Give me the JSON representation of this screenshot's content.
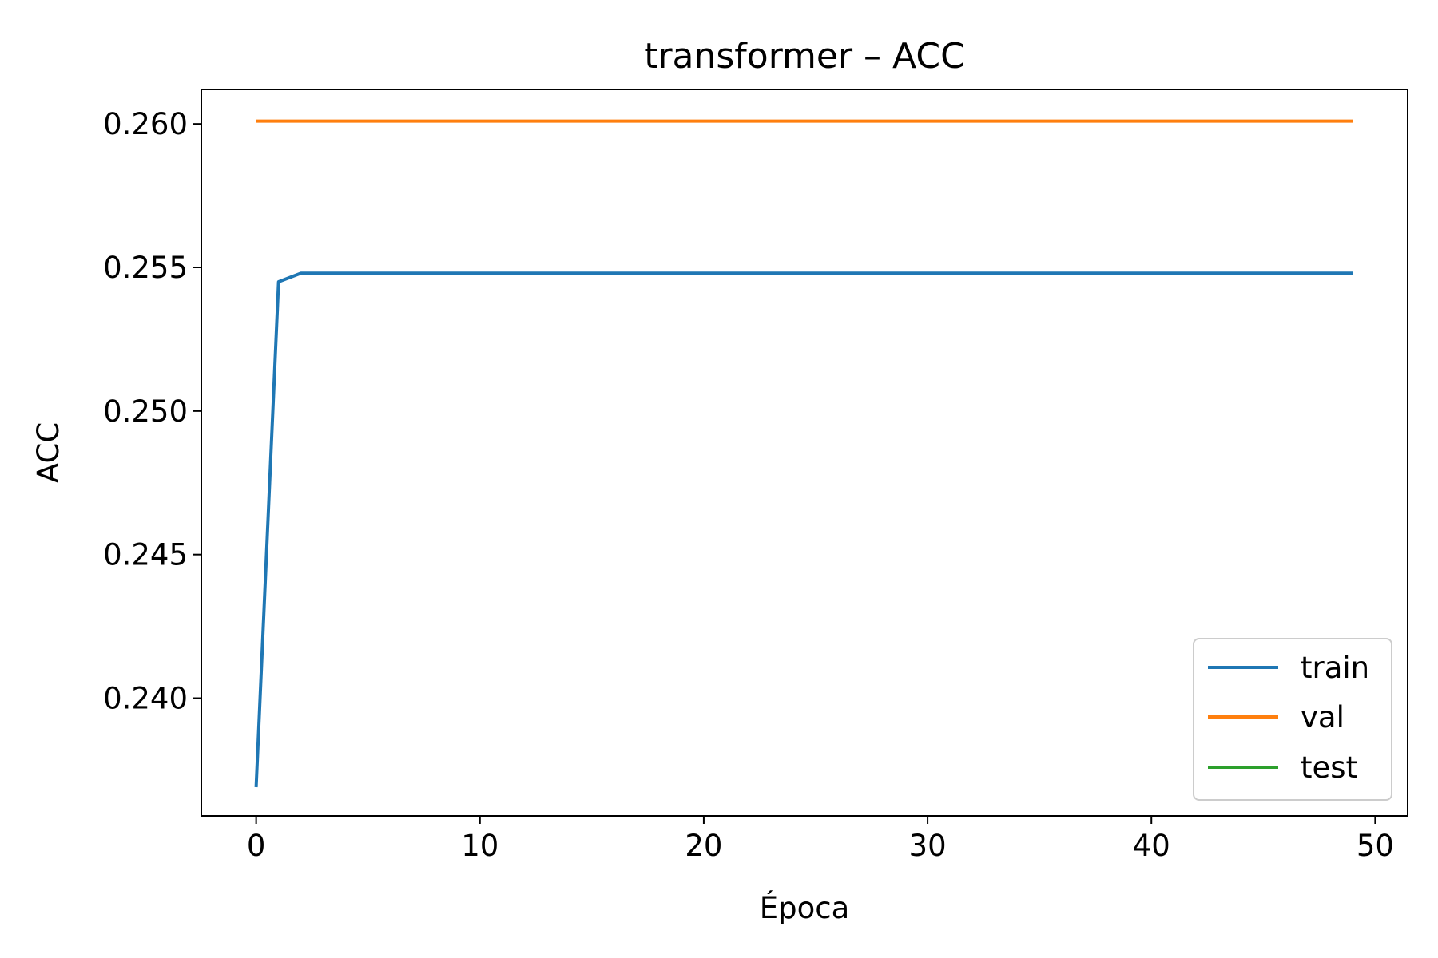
{
  "chart_data": {
    "type": "line",
    "title": "transformer – ACC",
    "xlabel": "Época",
    "ylabel": "ACC",
    "xlim": [
      -2.45,
      51.45
    ],
    "ylim": [
      0.2359,
      0.2612
    ],
    "xticks": [
      0,
      10,
      20,
      30,
      40,
      50
    ],
    "xtick_labels": [
      "0",
      "10",
      "20",
      "30",
      "40",
      "50"
    ],
    "yticks": [
      0.24,
      0.245,
      0.25,
      0.255,
      0.26
    ],
    "ytick_labels": [
      "0.240",
      "0.245",
      "0.250",
      "0.255",
      "0.260"
    ],
    "grid": false,
    "legend_position": "lower-right",
    "series": [
      {
        "name": "train",
        "color": "#1f77b4",
        "x": [
          0,
          1,
          2,
          49
        ],
        "y": [
          0.2369,
          0.2545,
          0.2548,
          0.2548
        ]
      },
      {
        "name": "val",
        "color": "#ff7f0e",
        "x": [
          0,
          49
        ],
        "y": [
          0.2601,
          0.2601
        ]
      },
      {
        "name": "test",
        "color": "#2ca02c",
        "x": [],
        "y": []
      }
    ]
  }
}
